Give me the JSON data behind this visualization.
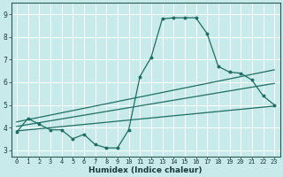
{
  "title": "",
  "xlabel": "Humidex (Indice chaleur)",
  "ylabel": "",
  "background_color": "#c8eaea",
  "grid_color": "#b0d8d8",
  "line_color": "#1e6e64",
  "xlim": [
    -0.5,
    23.5
  ],
  "ylim": [
    2.7,
    9.5
  ],
  "xticks": [
    0,
    1,
    2,
    3,
    4,
    5,
    6,
    7,
    8,
    9,
    10,
    11,
    12,
    13,
    14,
    15,
    16,
    17,
    18,
    19,
    20,
    21,
    22,
    23
  ],
  "yticks": [
    3,
    4,
    5,
    6,
    7,
    8,
    9
  ],
  "line1_x": [
    0,
    1,
    2,
    3,
    4,
    5,
    6,
    7,
    8,
    9,
    10,
    11,
    12,
    13,
    14,
    15,
    16,
    17,
    18,
    19,
    20,
    21,
    22,
    23
  ],
  "line1_y": [
    3.8,
    4.4,
    4.15,
    3.9,
    3.9,
    3.5,
    3.7,
    3.25,
    3.1,
    3.1,
    3.9,
    6.25,
    7.1,
    8.8,
    8.85,
    8.85,
    8.85,
    8.15,
    6.7,
    6.45,
    6.4,
    6.1,
    5.4,
    5.0
  ],
  "line2_x": [
    0,
    23
  ],
  "line2_y": [
    3.85,
    4.95
  ],
  "line3_x": [
    0,
    23
  ],
  "line3_y": [
    4.05,
    5.95
  ],
  "line4_x": [
    0,
    23
  ],
  "line4_y": [
    4.25,
    6.55
  ],
  "xlabel_fontsize": 6.5,
  "tick_fontsize": 5.0
}
